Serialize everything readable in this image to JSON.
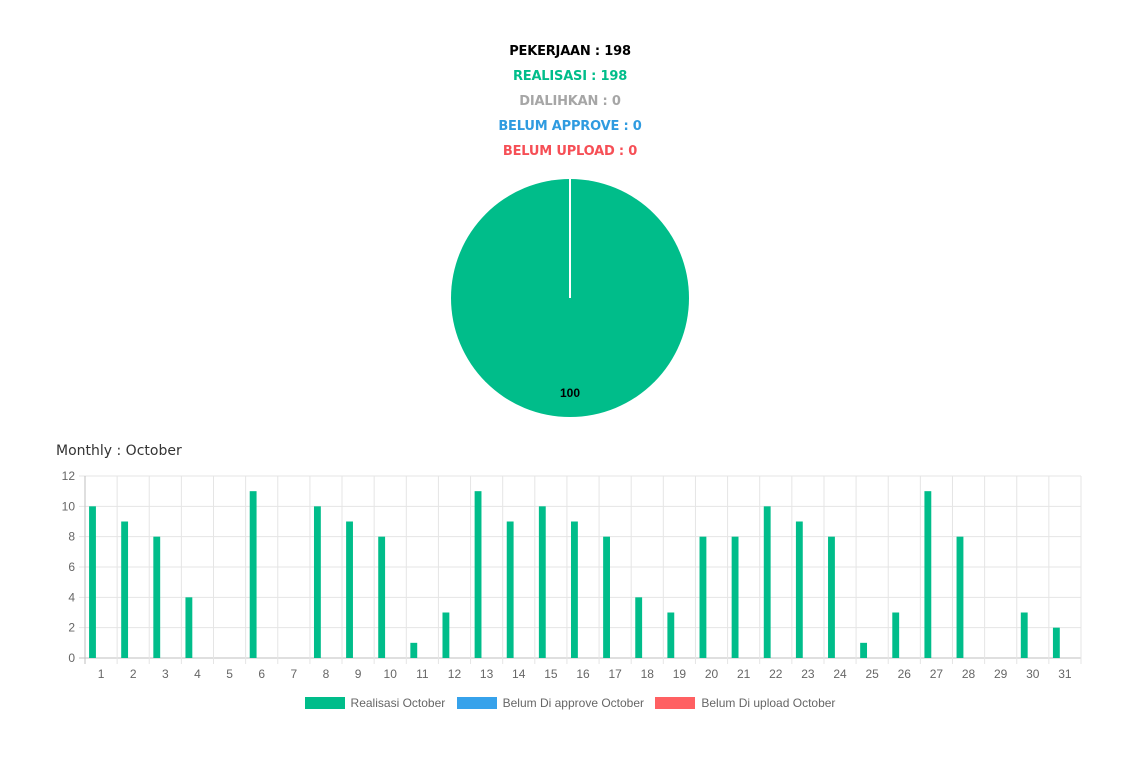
{
  "stats": [
    {
      "label": "PEKERJAAN : 198",
      "color": "#000000"
    },
    {
      "label": "REALISASI : 198",
      "color": "#00bd8a"
    },
    {
      "label": "DIALIHKAN : 0",
      "color": "#a6a6a6"
    },
    {
      "label": "BELUM APPROVE : 0",
      "color": "#2f9be0"
    },
    {
      "label": "BELUM UPLOAD : 0",
      "color": "#f64f56"
    }
  ],
  "monthly_title": "Monthly : October",
  "chart_data": [
    {
      "type": "pie",
      "values": [
        100
      ],
      "data_labels": [
        "100"
      ],
      "colors": [
        "#00bd8a"
      ]
    },
    {
      "type": "bar",
      "categories": [
        "1",
        "2",
        "3",
        "4",
        "5",
        "6",
        "7",
        "8",
        "9",
        "10",
        "11",
        "12",
        "13",
        "14",
        "15",
        "16",
        "17",
        "18",
        "19",
        "20",
        "21",
        "22",
        "23",
        "24",
        "25",
        "26",
        "27",
        "28",
        "29",
        "30",
        "31"
      ],
      "series": [
        {
          "name": "Realisasi October",
          "color": "#00bd8a",
          "values": [
            10,
            9,
            8,
            4,
            0,
            11,
            0,
            10,
            9,
            8,
            1,
            3,
            11,
            9,
            10,
            9,
            8,
            4,
            3,
            8,
            8,
            10,
            9,
            8,
            1,
            3,
            11,
            8,
            0,
            3,
            2
          ]
        },
        {
          "name": "Belum Di approve October",
          "color": "#36a2eb",
          "values": [
            0,
            0,
            0,
            0,
            0,
            0,
            0,
            0,
            0,
            0,
            0,
            0,
            0,
            0,
            0,
            0,
            0,
            0,
            0,
            0,
            0,
            0,
            0,
            0,
            0,
            0,
            0,
            0,
            0,
            0,
            0
          ]
        },
        {
          "name": "Belum Di upload October",
          "color": "#ff6062",
          "values": [
            0,
            0,
            0,
            0,
            0,
            0,
            0,
            0,
            0,
            0,
            0,
            0,
            0,
            0,
            0,
            0,
            0,
            0,
            0,
            0,
            0,
            0,
            0,
            0,
            0,
            0,
            0,
            0,
            0,
            0,
            0
          ]
        }
      ],
      "ylim": [
        0,
        12
      ],
      "yticks": [
        "0",
        "2",
        "4",
        "6",
        "8",
        "10",
        "12"
      ],
      "grid": true,
      "legend": "bottom"
    }
  ]
}
